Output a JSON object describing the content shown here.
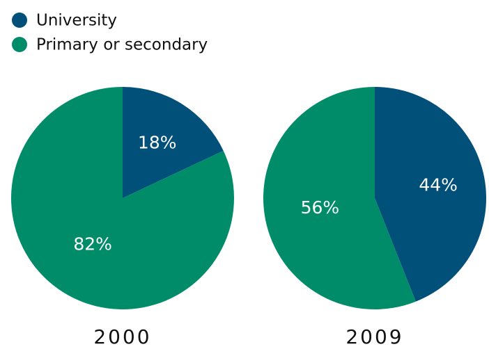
{
  "legend": [
    {
      "name": "University",
      "color": "#00507a"
    },
    {
      "name": "Primary or secondary",
      "color": "#008c69"
    }
  ],
  "chart_data": [
    {
      "type": "pie",
      "title": "2000",
      "values": [
        18,
        82
      ],
      "value_labels": [
        "18%",
        "82%"
      ]
    },
    {
      "type": "pie",
      "title": "2009",
      "values": [
        44,
        56
      ],
      "value_labels": [
        "44%",
        "56%"
      ]
    }
  ]
}
